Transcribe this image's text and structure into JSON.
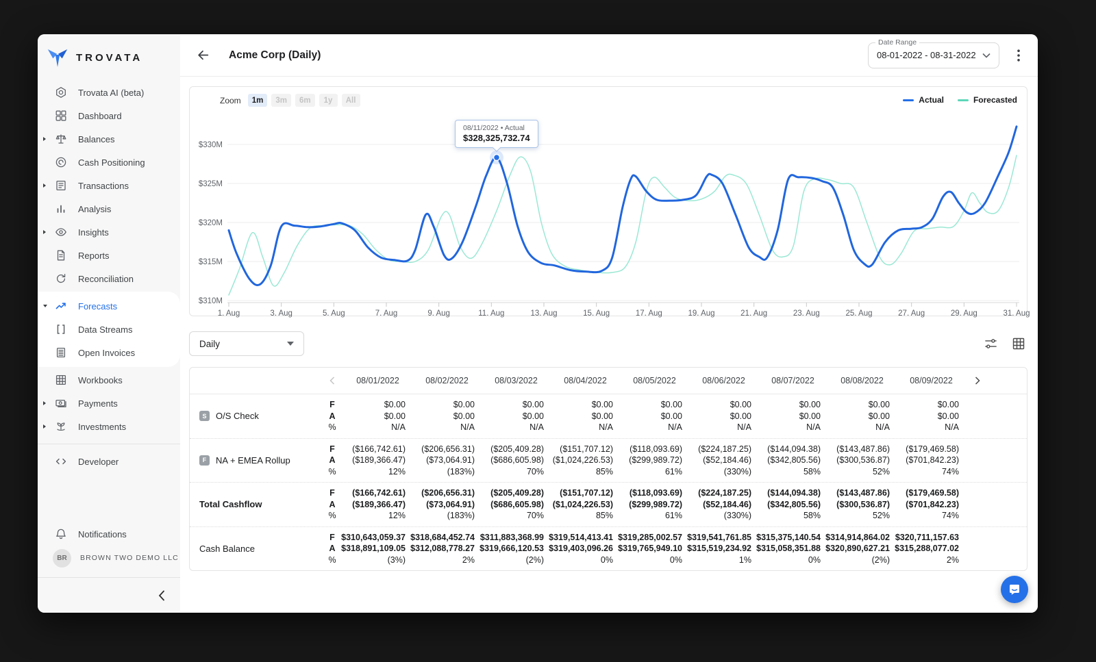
{
  "sidebar": {
    "brand": "TROVATA",
    "items_top": [
      {
        "label": "Trovata AI (beta)",
        "icon": "trovata-ai"
      },
      {
        "label": "Dashboard",
        "icon": "dashboard"
      },
      {
        "label": "Balances",
        "icon": "balances",
        "caret": "right"
      },
      {
        "label": "Cash Positioning",
        "icon": "cash-positioning"
      },
      {
        "label": "Transactions",
        "icon": "transactions",
        "caret": "right"
      },
      {
        "label": "Analysis",
        "icon": "analysis"
      },
      {
        "label": "Insights",
        "icon": "insights",
        "caret": "right"
      },
      {
        "label": "Reports",
        "icon": "reports"
      },
      {
        "label": "Reconciliation",
        "icon": "reconciliation"
      }
    ],
    "forecast_group": [
      {
        "label": "Forecasts",
        "icon": "forecasts",
        "caret": "down",
        "active": true
      },
      {
        "label": "Data Streams",
        "icon": "data-streams"
      },
      {
        "label": "Open Invoices",
        "icon": "open-invoices"
      }
    ],
    "items_bottom": [
      {
        "label": "Workbooks",
        "icon": "workbooks"
      },
      {
        "label": "Payments",
        "icon": "payments",
        "caret": "right"
      },
      {
        "label": "Investments",
        "icon": "investments",
        "caret": "right"
      }
    ],
    "developer": [
      {
        "label": "Developer",
        "icon": "developer"
      }
    ],
    "notifications": [
      {
        "label": "Notifications",
        "icon": "bell"
      }
    ],
    "account": {
      "initials": "BR",
      "name": "BROWN TWO DEMO LLC"
    }
  },
  "header": {
    "title": "Acme Corp (Daily)",
    "date_range_label": "Date Range",
    "date_range_value": "08-01-2022 - 08-31-2022"
  },
  "chart_data": {
    "type": "line",
    "zoom": {
      "label": "Zoom",
      "options": [
        "1m",
        "3m",
        "6m",
        "1y",
        "All"
      ],
      "active": "1m"
    },
    "legend": [
      {
        "name": "Actual",
        "color": "#2470e8"
      },
      {
        "name": "Forecasted",
        "color": "#5cd6b9"
      }
    ],
    "y_axis": {
      "ticks": [
        {
          "label": "$330M",
          "value": 330
        },
        {
          "label": "$325M",
          "value": 325
        },
        {
          "label": "$320M",
          "value": 320
        },
        {
          "label": "$315M",
          "value": 315
        },
        {
          "label": "$310M",
          "value": 310
        }
      ]
    },
    "x_axis": {
      "ticks": [
        {
          "label": "1. Aug",
          "day": 1
        },
        {
          "label": "3. Aug",
          "day": 3
        },
        {
          "label": "5. Aug",
          "day": 5
        },
        {
          "label": "7. Aug",
          "day": 7
        },
        {
          "label": "9. Aug",
          "day": 9
        },
        {
          "label": "11. Aug",
          "day": 11
        },
        {
          "label": "13. Aug",
          "day": 13
        },
        {
          "label": "15. Aug",
          "day": 15
        },
        {
          "label": "17. Aug",
          "day": 17
        },
        {
          "label": "19. Aug",
          "day": 19
        },
        {
          "label": "21. Aug",
          "day": 21
        },
        {
          "label": "23. Aug",
          "day": 23
        },
        {
          "label": "25. Aug",
          "day": 25
        },
        {
          "label": "27. Aug",
          "day": 27
        },
        {
          "label": "29. Aug",
          "day": 29
        },
        {
          "label": "31. Aug",
          "day": 31
        }
      ]
    },
    "xlim": [
      1,
      31
    ],
    "ylim": [
      309.5,
      333.5
    ],
    "units": "USD millions",
    "series": [
      {
        "name": "Actual",
        "color": "#2166dd",
        "width": 3,
        "points": [
          [
            1,
            319.0
          ],
          [
            1.3,
            316.0
          ],
          [
            1.8,
            312.7
          ],
          [
            2.2,
            312.1
          ],
          [
            2.6,
            314.5
          ],
          [
            3.0,
            319.5
          ],
          [
            3.5,
            319.6
          ],
          [
            4.0,
            319.4
          ],
          [
            4.5,
            319.5
          ],
          [
            5.0,
            319.8
          ],
          [
            5.3,
            319.9
          ],
          [
            5.8,
            319.0
          ],
          [
            6.3,
            316.8
          ],
          [
            6.8,
            315.5
          ],
          [
            7.3,
            315.2
          ],
          [
            7.8,
            315.1
          ],
          [
            8.1,
            316.5
          ],
          [
            8.5,
            321.0
          ],
          [
            8.8,
            319.5
          ],
          [
            9.2,
            315.8
          ],
          [
            9.5,
            315.4
          ],
          [
            9.9,
            317.5
          ],
          [
            10.4,
            322.0
          ],
          [
            10.8,
            326.0
          ],
          [
            11.2,
            328.33
          ],
          [
            11.6,
            325.0
          ],
          [
            12.0,
            319.5
          ],
          [
            12.4,
            316.2
          ],
          [
            12.9,
            314.8
          ],
          [
            13.4,
            314.5
          ],
          [
            14.0,
            313.9
          ],
          [
            14.6,
            313.7
          ],
          [
            15.2,
            313.8
          ],
          [
            15.6,
            315.5
          ],
          [
            16.0,
            322.0
          ],
          [
            16.3,
            325.5
          ],
          [
            16.5,
            325.9
          ],
          [
            16.9,
            324.0
          ],
          [
            17.3,
            322.9
          ],
          [
            17.8,
            322.8
          ],
          [
            18.3,
            322.9
          ],
          [
            18.8,
            323.5
          ],
          [
            19.2,
            325.9
          ],
          [
            19.4,
            326.1
          ],
          [
            19.8,
            325.0
          ],
          [
            20.3,
            321.0
          ],
          [
            20.8,
            316.8
          ],
          [
            21.2,
            315.6
          ],
          [
            21.5,
            315.5
          ],
          [
            21.9,
            319.0
          ],
          [
            22.3,
            325.5
          ],
          [
            22.7,
            325.8
          ],
          [
            23.2,
            325.7
          ],
          [
            23.6,
            325.3
          ],
          [
            24.0,
            324.5
          ],
          [
            24.4,
            321.0
          ],
          [
            24.8,
            316.5
          ],
          [
            25.2,
            314.7
          ],
          [
            25.5,
            314.6
          ],
          [
            26.0,
            317.5
          ],
          [
            26.5,
            319.0
          ],
          [
            27.0,
            319.2
          ],
          [
            27.4,
            319.4
          ],
          [
            27.8,
            320.5
          ],
          [
            28.2,
            323.3
          ],
          [
            28.5,
            323.9
          ],
          [
            28.8,
            322.5
          ],
          [
            29.1,
            321.3
          ],
          [
            29.4,
            321.2
          ],
          [
            29.8,
            322.5
          ],
          [
            30.3,
            326.0
          ],
          [
            30.7,
            329.0
          ],
          [
            31,
            332.3
          ]
        ]
      },
      {
        "name": "Forecasted",
        "color": "#9ae8d3",
        "width": 1.5,
        "points": [
          [
            1,
            310.7
          ],
          [
            1.4,
            314.0
          ],
          [
            1.9,
            318.7
          ],
          [
            2.3,
            315.5
          ],
          [
            2.7,
            311.9
          ],
          [
            3.1,
            313.5
          ],
          [
            3.6,
            317.0
          ],
          [
            4.1,
            319.3
          ],
          [
            4.6,
            319.6
          ],
          [
            5.1,
            319.7
          ],
          [
            5.6,
            319.6
          ],
          [
            6.1,
            318.5
          ],
          [
            6.6,
            316.5
          ],
          [
            7.1,
            315.2
          ],
          [
            7.6,
            315.0
          ],
          [
            8.1,
            315.0
          ],
          [
            8.6,
            316.5
          ],
          [
            9.1,
            320.8
          ],
          [
            9.4,
            321.0
          ],
          [
            9.8,
            317.0
          ],
          [
            10.2,
            315.4
          ],
          [
            10.6,
            317.0
          ],
          [
            11.2,
            321.5
          ],
          [
            11.7,
            326.0
          ],
          [
            12.1,
            328.4
          ],
          [
            12.5,
            326.5
          ],
          [
            12.9,
            320.0
          ],
          [
            13.3,
            316.0
          ],
          [
            13.8,
            314.4
          ],
          [
            14.4,
            313.9
          ],
          [
            15.0,
            313.6
          ],
          [
            15.6,
            313.6
          ],
          [
            16.1,
            314.3
          ],
          [
            16.5,
            317.5
          ],
          [
            16.9,
            324.0
          ],
          [
            17.2,
            325.8
          ],
          [
            17.6,
            324.5
          ],
          [
            18.0,
            323.2
          ],
          [
            18.5,
            322.8
          ],
          [
            19.0,
            323.0
          ],
          [
            19.5,
            324.0
          ],
          [
            19.9,
            325.9
          ],
          [
            20.2,
            326.1
          ],
          [
            20.7,
            325.0
          ],
          [
            21.2,
            321.0
          ],
          [
            21.7,
            316.5
          ],
          [
            22.1,
            315.6
          ],
          [
            22.5,
            317.0
          ],
          [
            22.9,
            324.0
          ],
          [
            23.3,
            325.6
          ],
          [
            23.8,
            325.5
          ],
          [
            24.3,
            325.0
          ],
          [
            24.8,
            324.5
          ],
          [
            25.3,
            320.0
          ],
          [
            25.8,
            315.5
          ],
          [
            26.2,
            314.6
          ],
          [
            26.6,
            316.0
          ],
          [
            27.1,
            318.9
          ],
          [
            27.6,
            319.2
          ],
          [
            28.1,
            319.4
          ],
          [
            28.6,
            319.5
          ],
          [
            29.0,
            321.5
          ],
          [
            29.3,
            323.8
          ],
          [
            29.6,
            322.5
          ],
          [
            29.9,
            321.3
          ],
          [
            30.3,
            321.5
          ],
          [
            30.7,
            324.5
          ],
          [
            31,
            328.6
          ]
        ]
      }
    ],
    "tooltip": {
      "line1": "08/11/2022 • Actual",
      "line2": "$328,325,732.74",
      "day": 11.2,
      "value": 328.33
    }
  },
  "table": {
    "period_select": {
      "value": "Daily"
    },
    "columns": [
      "08/01/2022",
      "08/02/2022",
      "08/03/2022",
      "08/04/2022",
      "08/05/2022",
      "08/06/2022",
      "08/07/2022",
      "08/08/2022",
      "08/09/2022"
    ],
    "metric_labels": [
      "F",
      "A",
      "%"
    ],
    "rows": [
      {
        "name": "O/S Check",
        "badge": "S",
        "label_bold": false,
        "values_bold": false,
        "F": [
          "$0.00",
          "$0.00",
          "$0.00",
          "$0.00",
          "$0.00",
          "$0.00",
          "$0.00",
          "$0.00",
          "$0.00"
        ],
        "A": [
          "$0.00",
          "$0.00",
          "$0.00",
          "$0.00",
          "$0.00",
          "$0.00",
          "$0.00",
          "$0.00",
          "$0.00"
        ],
        "P": [
          "N/A",
          "N/A",
          "N/A",
          "N/A",
          "N/A",
          "N/A",
          "N/A",
          "N/A",
          "N/A"
        ]
      },
      {
        "name": "NA + EMEA Rollup",
        "badge": "F",
        "label_bold": false,
        "values_bold": false,
        "F": [
          "($166,742.61)",
          "($206,656.31)",
          "($205,409.28)",
          "($151,707.12)",
          "($118,093.69)",
          "($224,187.25)",
          "($144,094.38)",
          "($143,487.86)",
          "($179,469.58)"
        ],
        "A": [
          "($189,366.47)",
          "($73,064.91)",
          "($686,605.98)",
          "($1,024,226.53)",
          "($299,989.72)",
          "($52,184.46)",
          "($342,805.56)",
          "($300,536.87)",
          "($701,842.23)"
        ],
        "P": [
          "12%",
          "(183%)",
          "70%",
          "85%",
          "61%",
          "(330%)",
          "58%",
          "52%",
          "74%"
        ]
      },
      {
        "name": "Total Cashflow",
        "badge": null,
        "label_bold": true,
        "values_bold": true,
        "F": [
          "($166,742.61)",
          "($206,656.31)",
          "($205,409.28)",
          "($151,707.12)",
          "($118,093.69)",
          "($224,187.25)",
          "($144,094.38)",
          "($143,487.86)",
          "($179,469.58)"
        ],
        "A": [
          "($189,366.47)",
          "($73,064.91)",
          "($686,605.98)",
          "($1,024,226.53)",
          "($299,989.72)",
          "($52,184.46)",
          "($342,805.56)",
          "($300,536.87)",
          "($701,842.23)"
        ],
        "P": [
          "12%",
          "(183%)",
          "70%",
          "85%",
          "61%",
          "(330%)",
          "58%",
          "52%",
          "74%"
        ]
      },
      {
        "name": "Cash Balance",
        "badge": null,
        "label_bold": false,
        "values_bold": true,
        "F": [
          "$310,643,059.37",
          "$318,684,452.74",
          "$311,883,368.99",
          "$319,514,413.41",
          "$319,285,002.57",
          "$319,541,761.85",
          "$315,375,140.54",
          "$314,914,864.02",
          "$320,711,157.63"
        ],
        "A": [
          "$318,891,109.05",
          "$312,088,778.27",
          "$319,666,120.53",
          "$319,403,096.26",
          "$319,765,949.10",
          "$315,519,234.92",
          "$315,058,351.88",
          "$320,890,627.21",
          "$315,288,077.02"
        ],
        "P": [
          "(3%)",
          "2%",
          "(2%)",
          "0%",
          "0%",
          "1%",
          "0%",
          "(2%)",
          "2%"
        ]
      }
    ]
  }
}
